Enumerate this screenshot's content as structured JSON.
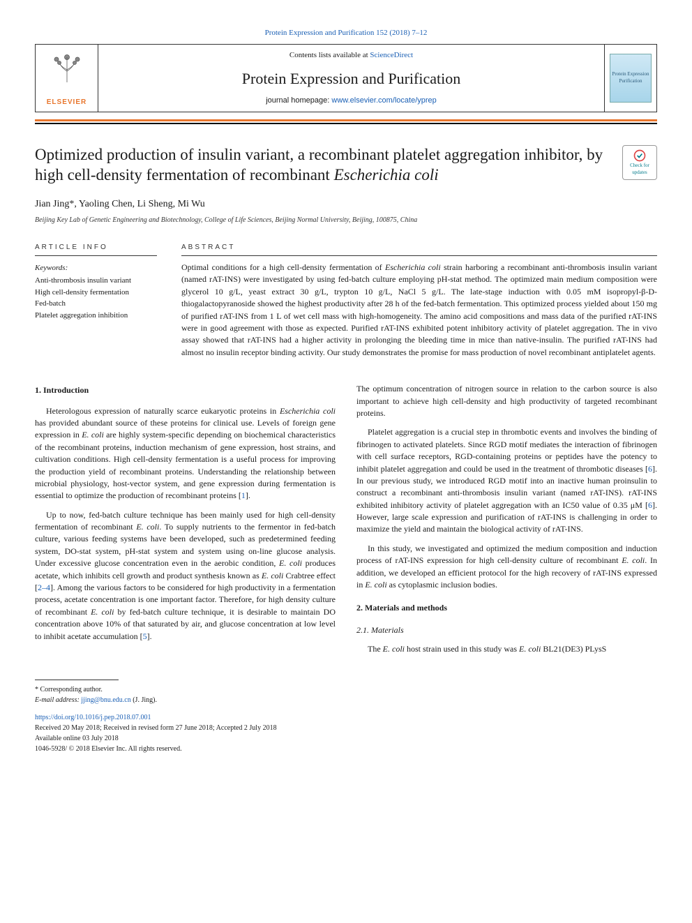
{
  "top_link": {
    "journal": "Protein Expression and Purification",
    "vol_pages": "152 (2018) 7–12",
    "href": "#"
  },
  "header": {
    "contents_prefix": "Contents lists available at ",
    "contents_link_text": "ScienceDirect",
    "journal_title": "Protein Expression and Purification",
    "homepage_prefix": "journal homepage: ",
    "homepage_link": "www.elsevier.com/locate/yprep",
    "elsevier_label": "ELSEVIER",
    "cover_caption": "Protein Expression Purification"
  },
  "article": {
    "title_pre": "Optimized production of insulin variant, a recombinant platelet aggregation inhibitor, by high cell-density fermentation of recombinant ",
    "title_italic": "Escherichia coli",
    "check_updates": "Check for updates"
  },
  "authors": {
    "list": "Jian Jing*, Yaoling Chen, Li Sheng, Mi Wu",
    "affiliation": "Beijing Key Lab of Genetic Engineering and Biotechnology, College of Life Sciences, Beijing Normal University, Beijing, 100875, China"
  },
  "info": {
    "heading": "ARTICLE INFO",
    "keywords_label": "Keywords:",
    "keywords": [
      "Anti-thrombosis insulin variant",
      "High cell-density fermentation",
      "Fed-batch",
      "Platelet aggregation inhibition"
    ]
  },
  "abstract": {
    "heading": "ABSTRACT",
    "text_parts": [
      {
        "t": "Optimal conditions for a high cell-density fermentation of "
      },
      {
        "t": "Escherichia coli",
        "italic": true
      },
      {
        "t": " strain harboring a recombinant anti-thrombosis insulin variant (named rAT-INS) were investigated by using fed-batch culture employing pH-stat method. The optimized main medium composition were glycerol 10 g/L, yeast extract 30 g/L, trypton 10 g/L, NaCl 5 g/L. The late-stage induction with 0.05 mM isopropyl-β-D- thiogalactopyranoside showed the highest productivity after 28 h of the fed-batch fermentation. This optimized process yielded about 150 mg of purified rAT-INS from 1 L of wet cell mass with high-homogeneity. The amino acid compositions and mass data of the purified rAT-INS were in good agreement with those as expected. Purified rAT-INS exhibited potent inhibitory activity of platelet aggregation. The in vivo assay showed that rAT-INS had a higher activity in prolonging the bleeding time in mice than native-insulin. The purified rAT-INS had almost no insulin receptor binding activity. Our study demonstrates the promise for mass production of novel recombinant antiplatelet agents."
      }
    ]
  },
  "body": {
    "col1": {
      "h1": "1. Introduction",
      "p1a": "Heterologous expression of naturally scarce eukaryotic proteins in ",
      "p1b": "Escherichia coli",
      "p1c": " has provided abundant source of these proteins for clinical use. Levels of foreign gene expression in ",
      "p1d": "E. coli",
      "p1e": " are highly system-specific depending on biochemical characteristics of the recombinant proteins, induction mechanism of gene expression, host strains, and cultivation conditions. High cell-density fermentation is a useful process for improving the production yield of recombinant proteins. Understanding the relationship between microbial physiology, host-vector system, and gene expression during fermentation is essential to optimize the production of recombinant proteins [",
      "p1ref1": "1",
      "p1f": "].",
      "p2a": "Up to now, fed-batch culture technique has been mainly used for high cell-density fermentation of recombinant ",
      "p2b": "E. coli",
      "p2c": ". To supply nutrients to the fermentor in fed-batch culture, various feeding systems have been developed, such as predetermined feeding system, DO-stat system, pH-stat system and system using on-line glucose analysis. Under excessive glucose concentration even in the aerobic condition, ",
      "p2d": "E. coli",
      "p2e": " produces acetate, which inhibits cell growth and product synthesis known as ",
      "p2f": "E. coli",
      "p2g": " Crabtree effect [",
      "p2ref": "2–4",
      "p2h": "]. Among the various factors to be considered for high productivity in a fermentation process, acetate concentration is one important factor. Therefore, for high density culture of recombinant ",
      "p2i": "E. coli",
      "p2j": " by fed-batch culture technique, it is desirable to maintain DO concentration above 10% of that saturated by air, and glucose concentration at low level to inhibit acetate accumulation [",
      "p2ref2": "5",
      "p2k": "]."
    },
    "col2": {
      "p0": "The optimum concentration of nitrogen source in relation to the carbon source is also important to achieve high cell-density and high productivity of targeted recombinant proteins.",
      "p1a": "Platelet aggregation is a crucial step in thrombotic events and involves the binding of fibrinogen to activated platelets. Since RGD motif mediates the interaction of fibrinogen with cell surface receptors, RGD-containing proteins or peptides have the potency to inhibit platelet aggregation and could be used in the treatment of thrombotic diseases [",
      "p1ref1": "6",
      "p1b": "]. In our previous study, we introduced RGD motif into an inactive human proinsulin to construct a recombinant anti-thrombosis insulin variant (named rAT-INS). rAT-INS exhibited inhibitory activity of platelet aggregation with an IC50 value of 0.35 μM [",
      "p1ref2": "6",
      "p1c": "]. However, large scale expression and purification of rAT-INS is challenging in order to maximize the yield and maintain the biological activity of rAT-INS.",
      "p2a": "In this study, we investigated and optimized the medium composition and induction process of rAT-INS expression for high cell-density culture of recombinant ",
      "p2b": "E. coli",
      "p2c": ". In addition, we developed an efficient protocol for the high recovery of rAT-INS expressed in ",
      "p2d": "E. coli",
      "p2e": " as cytoplasmic inclusion bodies.",
      "h2": "2. Materials and methods",
      "h21": "2.1. Materials",
      "p3a": "The ",
      "p3b": "E. coli",
      "p3c": " host strain used in this study was ",
      "p3d": "E. coli",
      "p3e": " BL21(DE3) PLysS"
    }
  },
  "footer": {
    "corr": "* Corresponding author.",
    "email_label": "E-mail address: ",
    "email": "jjing@bnu.edu.cn",
    "email_suffix": " (J. Jing).",
    "doi": "https://doi.org/10.1016/j.pep.2018.07.001",
    "received": "Received 20 May 2018; Received in revised form 27 June 2018; Accepted 2 July 2018",
    "online": "Available online 03 July 2018",
    "copyright": "1046-5928/ © 2018 Elsevier Inc. All rights reserved."
  },
  "colors": {
    "link": "#1a5fb4",
    "orange": "#e8762d",
    "text": "#1a1a1a"
  }
}
